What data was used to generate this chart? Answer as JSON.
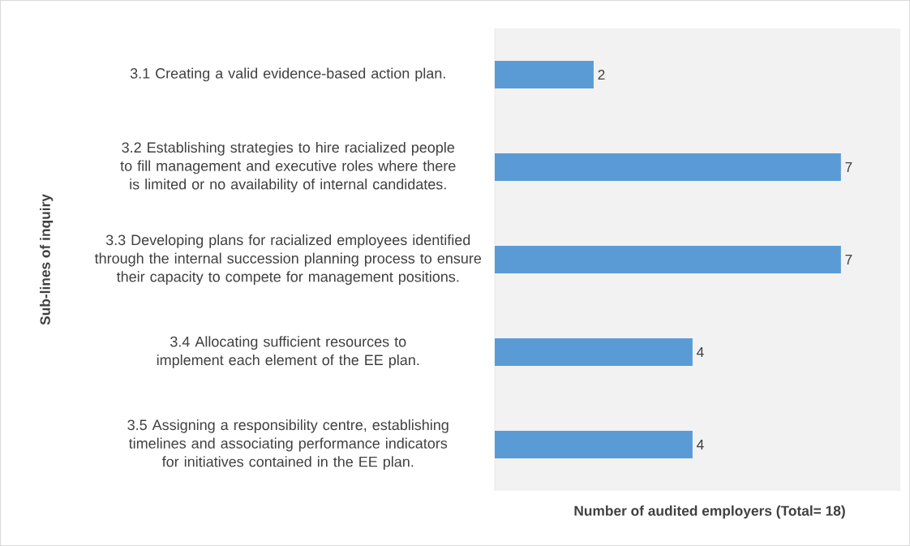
{
  "chart_data": {
    "type": "bar",
    "orientation": "horizontal",
    "categories": [
      "3.1 Creating a valid evidence-based action plan.",
      "3.2 Establishing strategies to hire racialized people to fill management and executive roles where there is limited or no availability of internal candidates.",
      "3.3 Developing plans for racialized employees identified through the internal succession planning process to ensure their capacity to compete for management positions.",
      "3.4 Allocating sufficient resources to implement each element of the EE plan.",
      "3.5 Assigning a responsibility centre, establishing timelines and associating performance indicators for initiatives contained in the EE plan."
    ],
    "values": [
      2,
      7,
      7,
      4,
      4
    ],
    "color": "#5b9bd5",
    "data_labels": true,
    "xlim": [
      0,
      8.2
    ],
    "tick_labels": "y",
    "xlabel": "Number of audited employers (Total= 18)",
    "ylabel": "Sub-lines of inquiry"
  }
}
